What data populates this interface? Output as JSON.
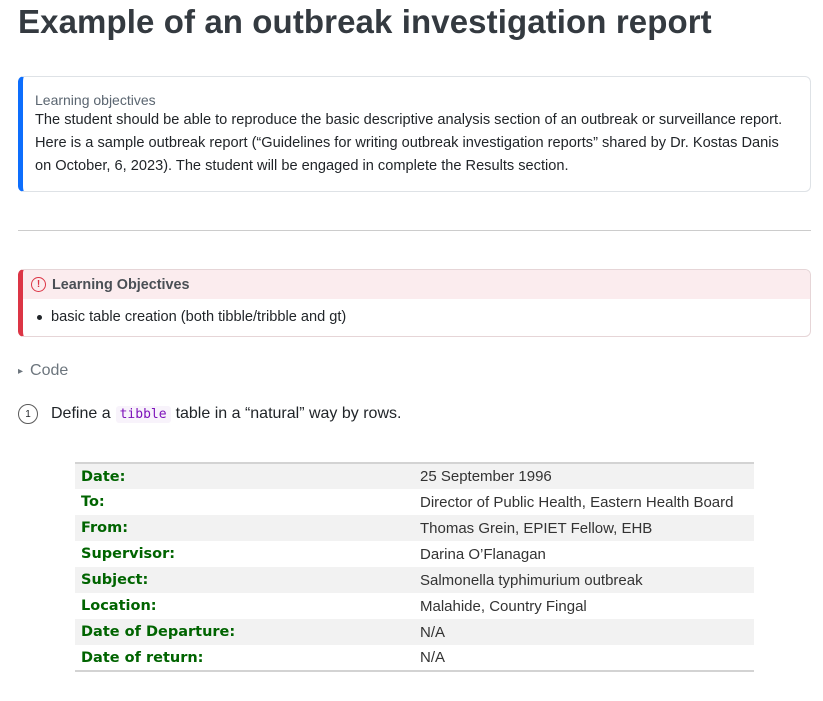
{
  "page_title": "Example of an outbreak investigation report",
  "learning_note": {
    "title": "Learning objectives",
    "body": "The student should be able to reproduce the basic descriptive analysis section of an outbreak or surveillance report. Here is a sample outbreak report (“Guidelines for writing outbreak investigation reports” shared by Dr. Kostas Danis on October, 6, 2023). The student will be engaged in complete the Results section."
  },
  "important_callout": {
    "icon": "exclamation-circle-icon",
    "icon_glyph": "!",
    "title": "Learning Objectives",
    "items": [
      "basic table creation (both tibble/tribble and gt)"
    ]
  },
  "code_toggle": {
    "label": "Code",
    "arrow": "▸"
  },
  "annotation": {
    "number": "1",
    "text_before": "Define a",
    "code": "tibble",
    "text_after": "table in a “natural” way by rows."
  },
  "report_table": {
    "rows": [
      {
        "key": "Date:",
        "value": "25 September 1996"
      },
      {
        "key": "To:",
        "value": "Director of Public Health, Eastern Health Board"
      },
      {
        "key": "From:",
        "value": "Thomas Grein, EPIET Fellow, EHB"
      },
      {
        "key": "Supervisor:",
        "value": "Darina O’Flanagan"
      },
      {
        "key": "Subject:",
        "value": "Salmonella typhimurium outbreak"
      },
      {
        "key": "Location:",
        "value": "Malahide, Country Fingal"
      },
      {
        "key": "Date of Departure:",
        "value": "N/A"
      },
      {
        "key": "Date of return:",
        "value": "N/A"
      }
    ]
  },
  "colors": {
    "note_accent": "#0d6efd",
    "important_accent": "#dc3545",
    "table_key": "#006400",
    "code_text": "#7d12ba"
  }
}
